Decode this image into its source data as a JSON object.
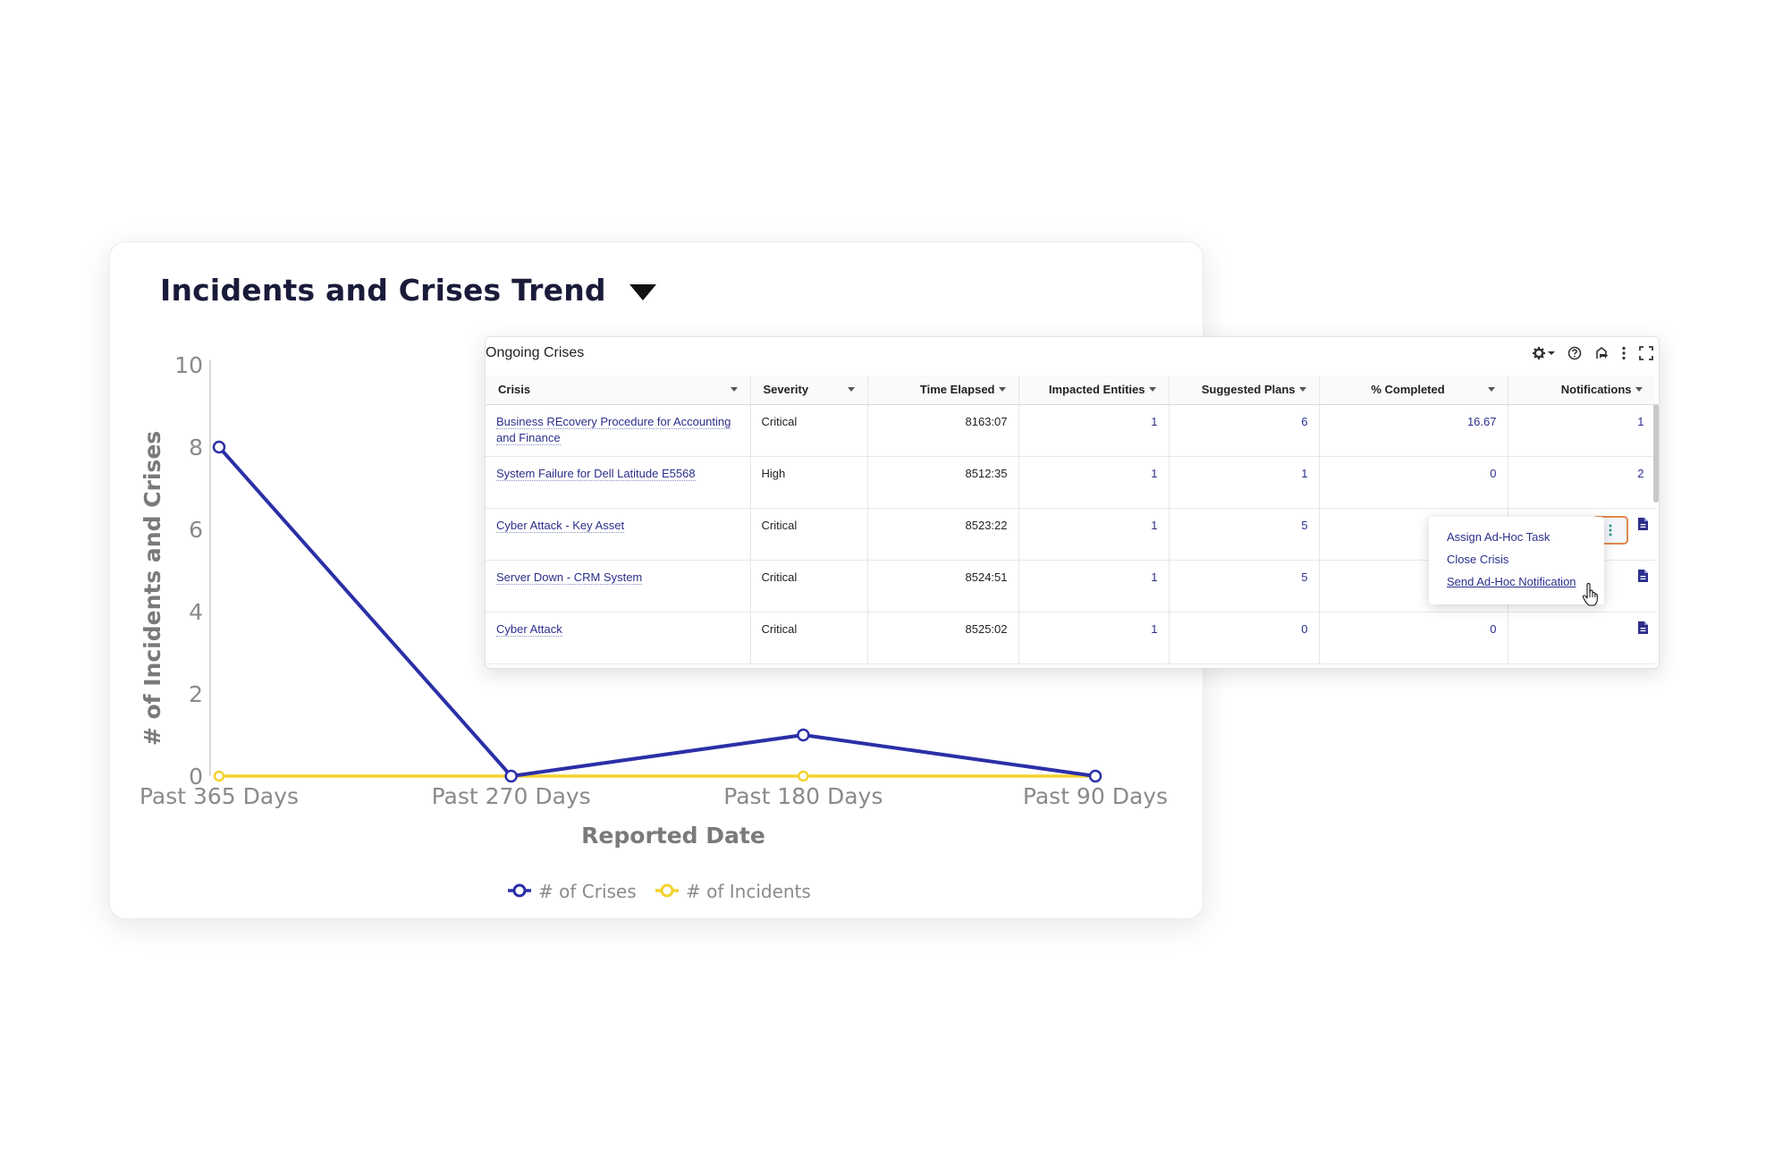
{
  "trend": {
    "title": "Incidents and Crises Trend"
  },
  "chart_data": {
    "type": "line",
    "title": "Incidents and Crises Trend",
    "xlabel": "Reported Date",
    "ylabel": "# of Incidents and Crises",
    "categories": [
      "Past 365 Days",
      "Past 270 Days",
      "Past 180 Days",
      "Past 90 Days"
    ],
    "yticks": [
      0,
      2,
      4,
      6,
      8,
      10
    ],
    "ylim": [
      0,
      10
    ],
    "series": [
      {
        "name": "# of Crises",
        "values": [
          8,
          0,
          1,
          0
        ],
        "color": "#2b2fa8"
      },
      {
        "name": "# of Incidents",
        "values": [
          0,
          0,
          0,
          0
        ],
        "color": "#f2d22e"
      }
    ],
    "legend_position": "bottom-center",
    "grid": false
  },
  "crises": {
    "title": "Ongoing Crises",
    "tools": [
      "gear-icon",
      "help-icon",
      "share-icon",
      "more-icon",
      "expand-icon"
    ],
    "columns": [
      "Crisis",
      "Severity",
      "Time Elapsed",
      "Impacted Entities",
      "Suggested Plans",
      "% Completed",
      "Notifications"
    ],
    "rows": [
      {
        "crisis": "Business REcovery Procedure for Accounting and Finance",
        "severity": "Critical",
        "time": "8163:07",
        "impacted": "1",
        "plans": "6",
        "completed": "16.67",
        "notifications": "1"
      },
      {
        "crisis": "System Failure  for Dell Latitude E5568",
        "severity": "High",
        "time": "8512:35",
        "impacted": "1",
        "plans": "1",
        "completed": "0",
        "notifications": "2"
      },
      {
        "crisis": "Cyber Attack - Key Asset",
        "severity": "Critical",
        "time": "8523:22",
        "impacted": "1",
        "plans": "5",
        "completed": "",
        "notifications": ""
      },
      {
        "crisis": "Server Down - CRM System",
        "severity": "Critical",
        "time": "8524:51",
        "impacted": "1",
        "plans": "5",
        "completed": "",
        "notifications": ""
      },
      {
        "crisis": "Cyber Attack",
        "severity": "Critical",
        "time": "8525:02",
        "impacted": "1",
        "plans": "0",
        "completed": "0",
        "notifications": ""
      }
    ],
    "context_menu": [
      "Assign Ad-Hoc Task",
      "Close Crisis",
      "Send Ad-Hoc Notification"
    ],
    "colors": {
      "link": "#2b2f8a",
      "active_outline": "#e0884a"
    }
  }
}
